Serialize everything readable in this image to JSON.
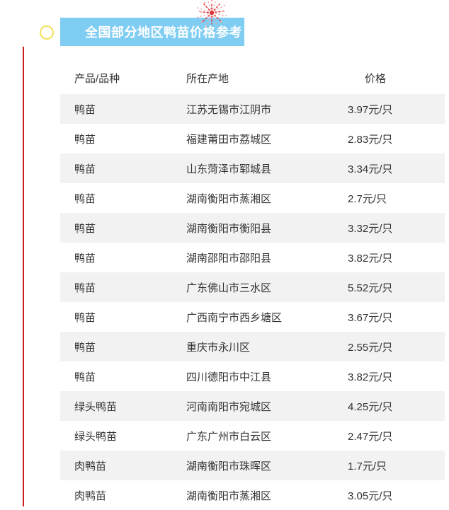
{
  "page": {
    "background": "#ffffff"
  },
  "decorations": {
    "left_line_color": "#cb1e1e",
    "ring_color": "#f1e15d",
    "firework_color_main": "#e24545",
    "firework_color_light": "#f5a3a3"
  },
  "banner": {
    "title": "全国部分地区鸭苗价格参考",
    "background": "#7fcdf2",
    "text_color": "#ffffff"
  },
  "table": {
    "stripe_color": "#f2f2f2",
    "text_color": "#333333",
    "headers": {
      "product": "产品/品种",
      "origin": "所在产地",
      "price": "价格"
    },
    "rows": [
      {
        "product": "鸭苗",
        "origin": "江苏无锡市江阴市",
        "price": "3.97元/只"
      },
      {
        "product": "鸭苗",
        "origin": "福建莆田市荔城区",
        "price": "2.83元/只"
      },
      {
        "product": "鸭苗",
        "origin": "山东菏泽市郓城县",
        "price": "3.34元/只"
      },
      {
        "product": "鸭苗",
        "origin": "湖南衡阳市蒸湘区",
        "price": "2.7元/只"
      },
      {
        "product": "鸭苗",
        "origin": "湖南衡阳市衡阳县",
        "price": "3.32元/只"
      },
      {
        "product": "鸭苗",
        "origin": "湖南邵阳市邵阳县",
        "price": "3.82元/只"
      },
      {
        "product": "鸭苗",
        "origin": "广东佛山市三水区",
        "price": "5.52元/只"
      },
      {
        "product": "鸭苗",
        "origin": "广西南宁市西乡塘区",
        "price": "3.67元/只"
      },
      {
        "product": "鸭苗",
        "origin": "重庆市永川区",
        "price": "2.55元/只"
      },
      {
        "product": "鸭苗",
        "origin": "四川德阳市中江县",
        "price": "3.82元/只"
      },
      {
        "product": "绿头鸭苗",
        "origin": "河南南阳市宛城区",
        "price": "4.25元/只"
      },
      {
        "product": "绿头鸭苗",
        "origin": "广东广州市白云区",
        "price": "2.47元/只"
      },
      {
        "product": "肉鸭苗",
        "origin": "湖南衡阳市珠晖区",
        "price": "1.7元/只"
      },
      {
        "product": "肉鸭苗",
        "origin": "湖南衡阳市蒸湘区",
        "price": "3.05元/只"
      }
    ]
  }
}
